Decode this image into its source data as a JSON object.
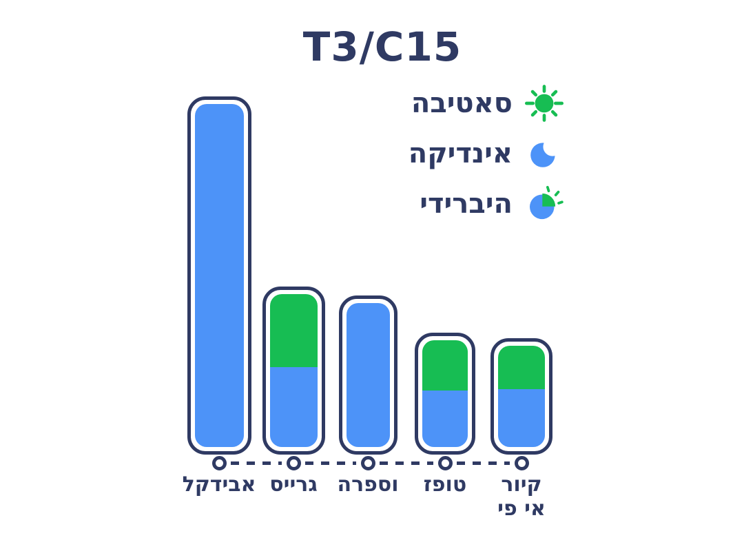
{
  "title": "T3/C15",
  "legend": {
    "position": "top-right",
    "items": [
      {
        "label": "סאטיבה",
        "icon": "sun-icon",
        "color": "#17BD53"
      },
      {
        "label": "אינדיקה",
        "icon": "moon-icon",
        "color": "#4D93F8"
      },
      {
        "label": "היברידי",
        "icon": "hybrid-sun-moon-icon",
        "colors": [
          "#4D93F8",
          "#17BD53"
        ]
      }
    ]
  },
  "colors": {
    "navy_outline_text": "#2F3A63",
    "indica_blue": "#4D93F8",
    "sativa_green": "#17BD53",
    "background": "#FFFFFF"
  },
  "chart_data": {
    "type": "bar",
    "stacked": true,
    "title": "T3/C15",
    "xlabel": "",
    "ylabel": "",
    "ylim": [
      0,
      100
    ],
    "grid": false,
    "values_estimated_from_bar_heights": true,
    "categories": [
      "אבידקל",
      "גרייס",
      "וספרה",
      "טופז",
      "קיור אי פי"
    ],
    "series": [
      {
        "name": "סאטיבה",
        "color": "#17BD53",
        "values": [
          0,
          22.5,
          0,
          16,
          14
        ]
      },
      {
        "name": "אינדיקה",
        "color": "#4D93F8",
        "values": [
          100,
          24.5,
          44.5,
          18,
          18.5
        ]
      }
    ],
    "axis_style": "dashed line with hollow circle markers under each bar"
  }
}
